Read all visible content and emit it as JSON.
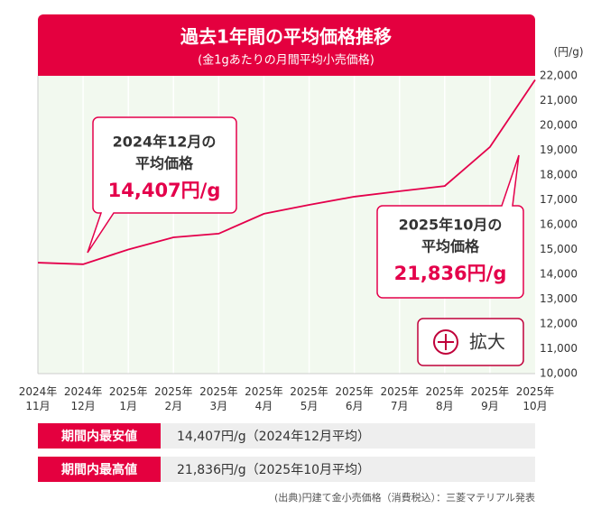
{
  "chart_data": {
    "type": "line",
    "title": "過去1年間の平均価格推移",
    "subtitle": "(金1gあたりの月間平均小売価格)",
    "y_unit": "(円/g)",
    "categories": [
      {
        "year": "2024年",
        "month": "11月"
      },
      {
        "year": "2024年",
        "month": "12月"
      },
      {
        "year": "2025年",
        "month": "1月"
      },
      {
        "year": "2025年",
        "month": "2月"
      },
      {
        "year": "2025年",
        "month": "3月"
      },
      {
        "year": "2025年",
        "month": "4月"
      },
      {
        "year": "2025年",
        "month": "5月"
      },
      {
        "year": "2025年",
        "month": "6月"
      },
      {
        "year": "2025年",
        "month": "7月"
      },
      {
        "year": "2025年",
        "month": "8月"
      },
      {
        "year": "2025年",
        "month": "9月"
      },
      {
        "year": "2025年",
        "month": "10月"
      }
    ],
    "values": [
      14470,
      14407,
      15000,
      15490,
      15640,
      16440,
      16800,
      17130,
      17350,
      17560,
      19130,
      21836
    ],
    "color": "#e4004b",
    "ylim": [
      10000,
      22000
    ],
    "yticks": [
      {
        "value": 10000,
        "label": "10,000"
      },
      {
        "value": 11000,
        "label": "11,000"
      },
      {
        "value": 12000,
        "label": "12,000"
      },
      {
        "value": 13000,
        "label": "13,000"
      },
      {
        "value": 14000,
        "label": "14,000"
      },
      {
        "value": 15000,
        "label": "15,000"
      },
      {
        "value": 16000,
        "label": "16,000"
      },
      {
        "value": 17000,
        "label": "17,000"
      },
      {
        "value": 18000,
        "label": "18,000"
      },
      {
        "value": 19000,
        "label": "19,000"
      },
      {
        "value": 20000,
        "label": "20,000"
      },
      {
        "value": 21000,
        "label": "21,000"
      },
      {
        "value": 22000,
        "label": "22,000"
      }
    ],
    "grid": true,
    "annotations": [
      {
        "lines": [
          "2024年12月の",
          "平均価格"
        ],
        "text": "14,407円/g"
      },
      {
        "lines": [
          "2025年10月の",
          "平均価格"
        ],
        "text": "21,836円/g"
      }
    ],
    "button": "拡大"
  },
  "summary": [
    {
      "label": "期間内最安値",
      "value": "14,407円/g（2024年12月平均）"
    },
    {
      "label": "期間内最高値",
      "value": "21,836円/g（2025年10月平均）"
    }
  ],
  "source": "(出典)円建て金小売価格（消費税込）：三菱マテリアル発表"
}
